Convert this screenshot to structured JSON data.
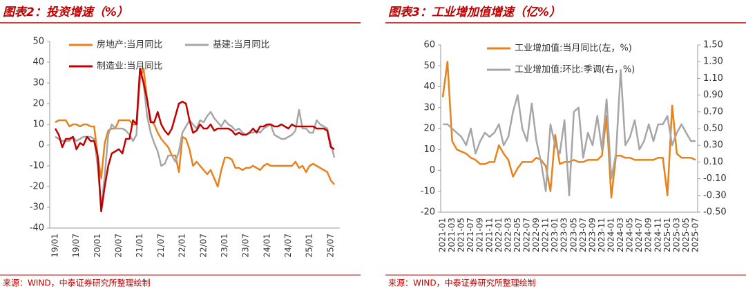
{
  "chart_data": [
    {
      "type": "line",
      "title": "图表2：投资增速（%）",
      "source": "来源：WIND，中泰证券研究所整理绘制",
      "categories": [
        "19/01",
        null,
        null,
        null,
        null,
        null,
        "19/07",
        null,
        null,
        null,
        null,
        null,
        "20/01",
        null,
        null,
        null,
        null,
        null,
        "20/07",
        null,
        null,
        null,
        null,
        null,
        "21/01",
        null,
        null,
        null,
        null,
        null,
        "21/07",
        null,
        null,
        null,
        null,
        null,
        "22/01",
        null,
        null,
        null,
        null,
        null,
        "22/07",
        null,
        null,
        null,
        null,
        null,
        "23/01",
        null,
        null,
        null,
        null,
        null,
        "23/07",
        null,
        null,
        null,
        null,
        null,
        "24/01",
        null,
        null,
        null,
        null,
        null,
        "24/07",
        null,
        null,
        null,
        null,
        null,
        "25/01",
        null,
        null,
        null,
        null,
        null,
        "25/07",
        null
      ],
      "ylim": [
        -40,
        50
      ],
      "yticks": [
        -40,
        -30,
        -20,
        -10,
        0,
        10,
        20,
        30,
        40,
        50
      ],
      "series": [
        {
          "name": "房地产:当月同比",
          "color": "#e8811c",
          "values": [
            11,
            12,
            12,
            12,
            9,
            10,
            10,
            9,
            10,
            10,
            9,
            9,
            -5,
            -16,
            1,
            7,
            8,
            8,
            12,
            12,
            12,
            12,
            10,
            10,
            32,
            37,
            22,
            12,
            10,
            6,
            3,
            1,
            -1,
            -5,
            -5,
            -13,
            4,
            3,
            -2,
            -10,
            -8,
            -10,
            -12,
            -14,
            -12,
            -16,
            -20,
            -12,
            -6,
            -6,
            -7,
            -11,
            -11,
            -12,
            -11,
            -11,
            -10,
            -11,
            -12,
            -10,
            -9,
            -10,
            -10,
            -10,
            -10,
            -10,
            -10,
            -10,
            -8,
            -11,
            -10,
            -13,
            -10,
            -9,
            -10,
            -11,
            -12,
            -13,
            -17,
            -19
          ]
        },
        {
          "name": "基建:当月同比",
          "color": "#a6a6a6",
          "values": [
            4,
            3,
            2,
            2,
            2,
            4,
            2,
            3,
            4,
            4,
            4,
            3,
            -10,
            -30,
            -15,
            5,
            10,
            8,
            8,
            8,
            7,
            5,
            2,
            5,
            36,
            30,
            14,
            6,
            1,
            -3,
            -10,
            -9,
            -5,
            -5,
            -8,
            -3,
            6,
            9,
            12,
            10,
            8,
            12,
            11,
            14,
            16,
            13,
            11,
            9,
            12,
            10,
            9,
            7,
            8,
            6,
            5,
            6,
            6,
            7,
            6,
            8,
            9,
            10,
            5,
            4,
            3,
            3,
            4,
            5,
            7,
            17,
            8,
            8,
            6,
            6,
            12,
            10,
            9,
            8,
            1,
            -6
          ]
        },
        {
          "name": "制造业:当月同比",
          "color": "#c00000",
          "values": [
            8,
            5,
            -1,
            3,
            3,
            4,
            -2,
            1,
            0,
            4,
            2,
            2,
            -5,
            -32,
            -20,
            -10,
            -4,
            -3,
            -2,
            -4,
            3,
            3,
            12,
            10,
            37,
            30,
            22,
            11,
            11,
            16,
            10,
            7,
            5,
            8,
            14,
            20,
            21,
            20,
            12,
            6,
            7,
            10,
            8,
            8,
            10,
            7,
            8,
            8,
            8,
            8,
            7,
            5,
            6,
            5,
            5,
            6,
            8,
            6,
            9,
            9,
            10,
            10,
            9,
            9,
            10,
            9,
            8,
            10,
            9,
            9,
            9,
            9,
            9,
            9,
            8,
            8,
            8,
            7,
            -1,
            -2
          ]
        }
      ]
    },
    {
      "type": "line",
      "title": "图表3：工业增加值增速（亿%）",
      "source": "来源：WIND，中泰证券研究所整理绘制",
      "categories": [
        "2021-01",
        null,
        "2021-03",
        null,
        "2021-05",
        null,
        "2021-07",
        null,
        "2021-09",
        null,
        "2021-11",
        null,
        "2022-01",
        null,
        "2022-03",
        null,
        "2022-05",
        null,
        "2022-07",
        null,
        "2022-09",
        null,
        "2022-11",
        null,
        "2023-01",
        null,
        "2023-03",
        null,
        "2023-05",
        null,
        "2023-07",
        null,
        "2023-09",
        null,
        "2023-11",
        null,
        "2024-01",
        null,
        "2024-03",
        null,
        "2024-05",
        null,
        "2024-07",
        null,
        "2024-09",
        null,
        "2024-11",
        null,
        "2025-01",
        null,
        "2025-03",
        null,
        "2025-05",
        null,
        "2025-07"
      ],
      "ylim": [
        -20,
        60
      ],
      "yticks": [
        -20,
        -10,
        0,
        10,
        20,
        30,
        40,
        50,
        60
      ],
      "y2lim": [
        -0.5,
        1.5
      ],
      "y2ticks": [
        {
          "value": -0.5,
          "label": "-0.50"
        },
        {
          "value": -0.3,
          "label": "-0.30"
        },
        {
          "value": -0.1,
          "label": "-0.10"
        },
        {
          "value": 0.1,
          "label": "0.10"
        },
        {
          "value": 0.3,
          "label": "0.30"
        },
        {
          "value": 0.5,
          "label": "0.50"
        },
        {
          "value": 0.7,
          "label": "0.70"
        },
        {
          "value": 0.9,
          "label": "0.90"
        },
        {
          "value": 1.1,
          "label": "1.10"
        },
        {
          "value": 1.3,
          "label": "1.30"
        },
        {
          "value": 1.5,
          "label": "1.50"
        }
      ],
      "series": [
        {
          "name": "工业增加值:当月同比(左，%)",
          "color": "#e8811c",
          "values": [
            35,
            52,
            14,
            10,
            9,
            8,
            6,
            5,
            3,
            3,
            4,
            4,
            12,
            8,
            5,
            -3,
            1,
            4,
            4,
            4,
            6,
            5,
            2,
            -10,
            17,
            3,
            4,
            4,
            5,
            4,
            4,
            5,
            5,
            5,
            7,
            26,
            -13,
            7,
            7,
            6,
            6,
            5,
            5,
            5,
            5,
            5,
            6,
            6,
            -12,
            31,
            8,
            6,
            6,
            6,
            5
          ]
        },
        {
          "name": "工业增加值:环比:季调(右，%)",
          "color": "#a6a6a6",
          "axis": "y2",
          "values": [
            0.55,
            0.55,
            0.5,
            0.45,
            0.4,
            0.3,
            0.5,
            0.2,
            0.35,
            0.45,
            0.4,
            0.45,
            0.55,
            0.3,
            0.4,
            0.7,
            0.9,
            0.5,
            0.35,
            0.8,
            0.35,
            0.1,
            -0.25,
            0.55,
            0.3,
            0.2,
            0.6,
            -0.3,
            0.7,
            0.75,
            0.15,
            0.45,
            0.3,
            0.65,
            0.25,
            0.85,
            -0.1,
            0.2,
            1.2,
            0.3,
            0.4,
            0.6,
            0.25,
            0.35,
            0.55,
            0.35,
            0.55,
            0.55,
            0.65,
            0.3,
            0.45,
            0.55,
            0.45,
            0.35,
            0.35
          ]
        }
      ]
    }
  ]
}
